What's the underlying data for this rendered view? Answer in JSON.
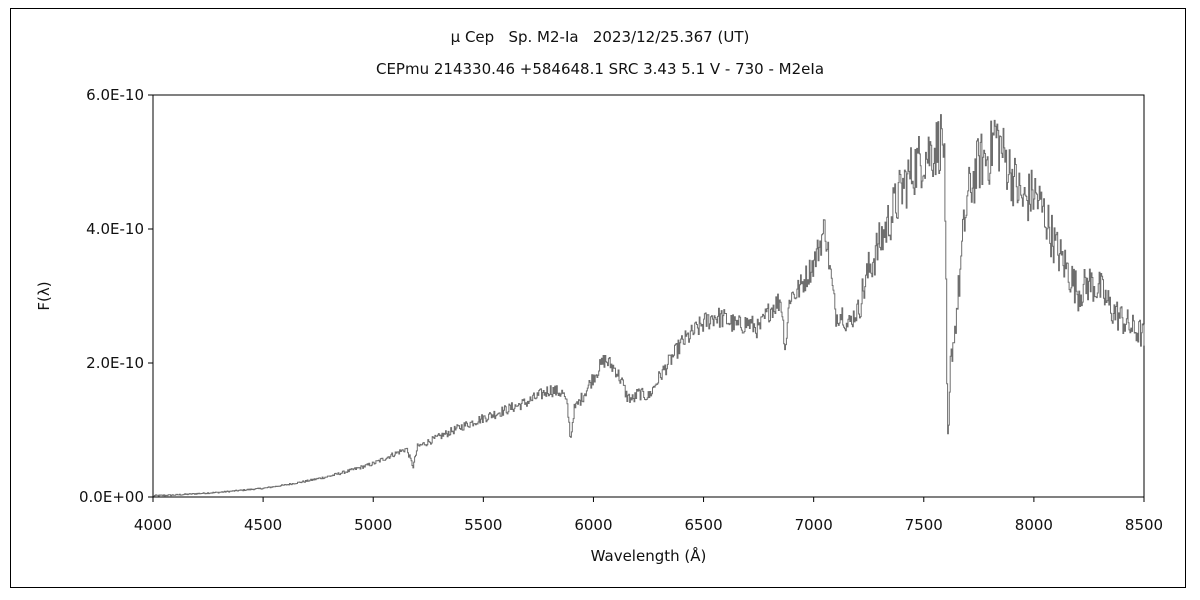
{
  "chart_data": {
    "type": "line",
    "title": "μ Cep   Sp. M2-Ia   2023/12/25.367 (UT)",
    "subtitle": "CEPmu 214330.46 +584648.1 SRC 3.43 5.1 V - 730 - M2eIa",
    "xlabel": "Wavelength (Å)",
    "ylabel": "F(λ)",
    "xlim": [
      4000,
      8500
    ],
    "ylim": [
      0,
      6e-10
    ],
    "xticks": [
      "4000",
      "4500",
      "5000",
      "5500",
      "6000",
      "6500",
      "7000",
      "7500",
      "8000",
      "8500"
    ],
    "yticks": [
      "0.0E+00",
      "2.0E-10",
      "4.0E-10",
      "6.0E-10"
    ],
    "grid": false,
    "line_color": "#6e6e6e",
    "series": [
      {
        "x": [
          4000,
          4100,
          4200,
          4300,
          4400,
          4500,
          4600,
          4700,
          4800,
          4900,
          5000,
          5100,
          5150,
          5180,
          5200,
          5300,
          5400,
          5500,
          5600,
          5700,
          5800,
          5860,
          5880,
          5895,
          5910,
          5950,
          6000,
          6050,
          6100,
          6130,
          6150,
          6180,
          6200,
          6250,
          6300,
          6400,
          6500,
          6550,
          6600,
          6650,
          6700,
          6750,
          6800,
          6850,
          6870,
          6890,
          6920,
          6950,
          7000,
          7030,
          7050,
          7080,
          7100,
          7130,
          7150,
          7200,
          7250,
          7300,
          7350,
          7400,
          7450,
          7500,
          7550,
          7580,
          7590,
          7600,
          7605,
          7610,
          7620,
          7640,
          7660,
          7680,
          7700,
          7750,
          7800,
          7820,
          7850,
          7900,
          7950,
          8000,
          8050,
          8100,
          8150,
          8200,
          8250,
          8300,
          8350,
          8400,
          8450,
          8480,
          8495,
          8500
        ],
        "y": [
          2e-12,
          3e-12,
          5e-12,
          7e-12,
          1e-11,
          1.3e-11,
          1.8e-11,
          2.4e-11,
          3.1e-11,
          4e-11,
          5e-11,
          6.5e-11,
          7.2e-11,
          4.5e-11,
          7.5e-11,
          9e-11,
          1.05e-10,
          1.18e-10,
          1.3e-10,
          1.42e-10,
          1.6e-10,
          1.55e-10,
          1.35e-10,
          8.5e-11,
          1.3e-10,
          1.5e-10,
          1.8e-10,
          2.05e-10,
          1.9e-10,
          1.7e-10,
          1.5e-10,
          1.45e-10,
          1.55e-10,
          1.5e-10,
          1.8e-10,
          2.3e-10,
          2.6e-10,
          2.7e-10,
          2.65e-10,
          2.55e-10,
          2.6e-10,
          2.5e-10,
          2.8e-10,
          2.95e-10,
          2.2e-10,
          3e-10,
          3.05e-10,
          3.2e-10,
          3.5e-10,
          3.8e-10,
          4.05e-10,
          3.2e-10,
          2.7e-10,
          2.75e-10,
          2.55e-10,
          2.8e-10,
          3.4e-10,
          3.8e-10,
          4.2e-10,
          4.6e-10,
          4.9e-10,
          5.1e-10,
          5.2e-10,
          5.35e-10,
          5.3e-10,
          3e-10,
          1.2e-10,
          7.5e-11,
          2e-10,
          2.5e-10,
          3.2e-10,
          4e-10,
          4.5e-10,
          5e-10,
          5.1e-10,
          5.45e-10,
          5.2e-10,
          4.8e-10,
          4.4e-10,
          4.55e-10,
          4.2e-10,
          3.7e-10,
          3.4e-10,
          3.05e-10,
          3.2e-10,
          3.1e-10,
          2.8e-10,
          2.65e-10,
          2.5e-10,
          2.45e-10,
          2.4e-10,
          2.35e-10
        ]
      }
    ]
  }
}
